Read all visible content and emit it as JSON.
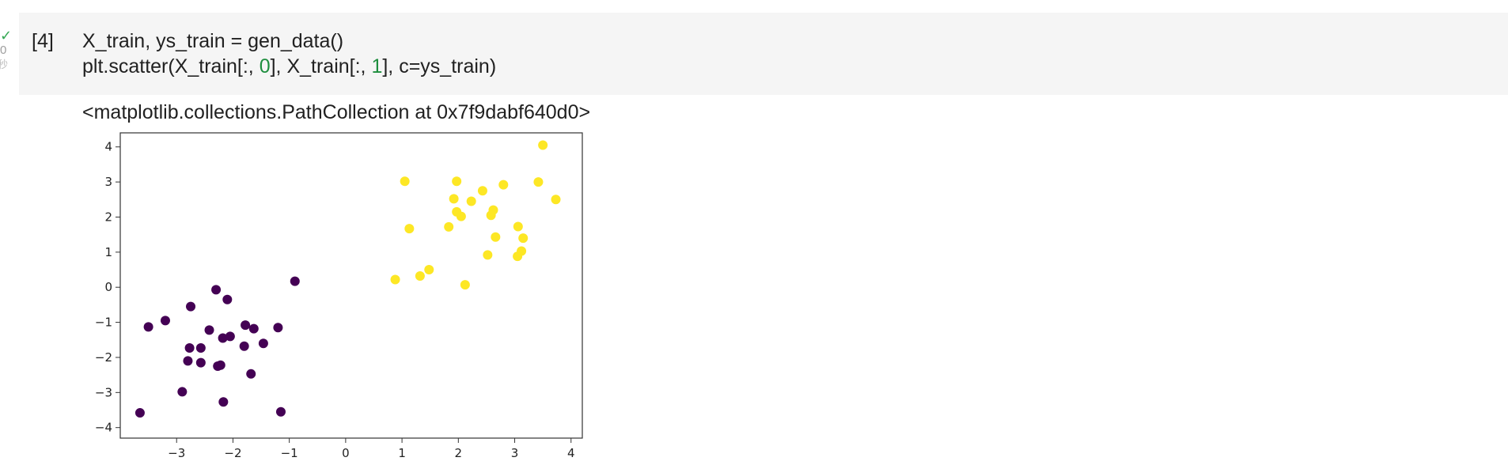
{
  "gutter": {
    "status_icon": "check-icon",
    "elapsed": "0",
    "unit": "秒"
  },
  "cell": {
    "execution_count": "[4]",
    "code_line1": "X_train, ys_train = gen_data()",
    "code_line2_pre": "plt.scatter(X_train[:, ",
    "code_line2_idx0": "0",
    "code_line2_mid": "], X_train[:, ",
    "code_line2_idx1": "1",
    "code_line2_post": "], c=ys_train)"
  },
  "output": {
    "text": "<matplotlib.collections.PathCollection at 0x7f9dabf640d0>"
  },
  "colors": {
    "class0": "#440154",
    "class1": "#fde725",
    "success": "#34a853",
    "number": "#1e8e3e"
  },
  "chart_data": {
    "type": "scatter",
    "title": "",
    "xlabel": "",
    "ylabel": "",
    "xlim": [
      -4.0,
      4.2
    ],
    "ylim": [
      -4.3,
      4.4
    ],
    "xticks": [
      -3,
      -2,
      -1,
      0,
      1,
      2,
      3,
      4
    ],
    "yticks": [
      -4,
      -3,
      -2,
      -1,
      0,
      1,
      2,
      3,
      4
    ],
    "xtick_labels": [
      "−3",
      "−2",
      "−1",
      "0",
      "1",
      "2",
      "3",
      "4"
    ],
    "ytick_labels": [
      "−4",
      "−3",
      "−2",
      "−1",
      "0",
      "1",
      "2",
      "3",
      "4"
    ],
    "grid": false,
    "series": [
      {
        "class": 0,
        "color": "#440154",
        "points": [
          [
            -0.9,
            0.17
          ],
          [
            -2.3,
            -0.07
          ],
          [
            -2.1,
            -0.35
          ],
          [
            -2.75,
            -0.55
          ],
          [
            -3.5,
            -1.13
          ],
          [
            -3.2,
            -0.95
          ],
          [
            -1.2,
            -1.15
          ],
          [
            -1.78,
            -1.08
          ],
          [
            -1.63,
            -1.18
          ],
          [
            -2.42,
            -1.22
          ],
          [
            -2.18,
            -1.45
          ],
          [
            -2.05,
            -1.4
          ],
          [
            -1.46,
            -1.6
          ],
          [
            -2.77,
            -1.73
          ],
          [
            -2.57,
            -1.73
          ],
          [
            -1.8,
            -1.68
          ],
          [
            -2.8,
            -2.1
          ],
          [
            -2.57,
            -2.15
          ],
          [
            -2.27,
            -2.25
          ],
          [
            -2.22,
            -2.22
          ],
          [
            -1.68,
            -2.47
          ],
          [
            -2.9,
            -2.98
          ],
          [
            -2.17,
            -3.27
          ],
          [
            -3.65,
            -3.58
          ],
          [
            -1.15,
            -3.55
          ]
        ]
      },
      {
        "class": 1,
        "color": "#fde725",
        "points": [
          [
            3.5,
            4.05
          ],
          [
            1.05,
            3.02
          ],
          [
            1.97,
            3.02
          ],
          [
            2.8,
            2.92
          ],
          [
            3.42,
            3.0
          ],
          [
            2.43,
            2.75
          ],
          [
            1.92,
            2.52
          ],
          [
            2.23,
            2.45
          ],
          [
            3.73,
            2.5
          ],
          [
            2.62,
            2.2
          ],
          [
            1.97,
            2.15
          ],
          [
            2.05,
            2.02
          ],
          [
            2.58,
            2.05
          ],
          [
            1.13,
            1.67
          ],
          [
            1.83,
            1.72
          ],
          [
            3.06,
            1.73
          ],
          [
            2.66,
            1.43
          ],
          [
            3.15,
            1.4
          ],
          [
            3.12,
            1.03
          ],
          [
            2.52,
            0.92
          ],
          [
            3.05,
            0.88
          ],
          [
            0.88,
            0.22
          ],
          [
            1.32,
            0.32
          ],
          [
            1.48,
            0.5
          ],
          [
            2.12,
            0.07
          ]
        ]
      }
    ]
  }
}
